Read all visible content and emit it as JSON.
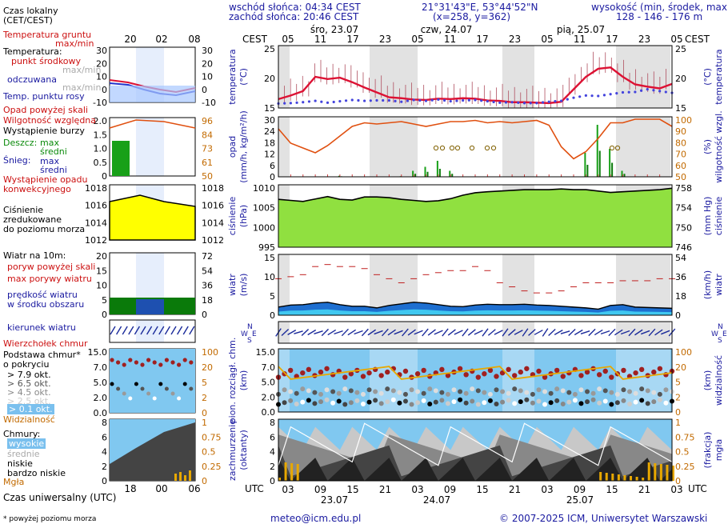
{
  "header": {
    "sunrise": "wschód słońca: 04:34 CEST",
    "sunset": "zachód słońca: 20:46 CEST",
    "coords": "21°31'43\"E, 53°44'52\"N",
    "grid": "(x=258,  y=362)",
    "altitude_label": "wysokość (min, środek, max)",
    "altitude_values": "128 - 146 - 176 m"
  },
  "time": {
    "local_label": "CEST",
    "utc_label": "UTC",
    "days_top": [
      "śro, 23.07",
      "czw, 24.07",
      "pią, 25.07"
    ],
    "top_hours": [
      "05",
      "11",
      "17",
      "23",
      "05",
      "11",
      "17",
      "23",
      "05",
      "11",
      "17",
      "23",
      "05"
    ],
    "bottom_hours": [
      "03",
      "09",
      "15",
      "21",
      "03",
      "09",
      "15",
      "21",
      "03",
      "09",
      "15",
      "21",
      "03"
    ],
    "dates_bottom": [
      "23.07",
      "24.07",
      "25.07"
    ],
    "legend_local": "Czas lokalny\n(CET/CEST)",
    "legend_local_hours": [
      "20",
      "02",
      "08"
    ],
    "legend_utc": "Czas uniwersalny (UTC)",
    "legend_utc_hours": [
      "18",
      "00",
      "06"
    ]
  },
  "legend": {
    "soil": "Temperatura gruntu",
    "soil_sub": "max/min",
    "temp": "Temperatura:",
    "temp_mid": "punkt środkowy",
    "temp_maxmin": "max/min",
    "feels": "odczuwana",
    "feels_maxmin": "max/min",
    "dew": "Temp. punktu rosy",
    "precip_over": "Opad powyżej skali",
    "humidity": "Wilgotność względna",
    "storm": "Wystąpienie burzy",
    "rain": "Deszcz:",
    "rain_max": "max",
    "rain_avg": "średni",
    "snow": "Śnieg:",
    "snow_max": "max",
    "snow_avg": "średni",
    "conv": "Wystąpienie opadu\nkonwekcyjnego",
    "pressure": "Ciśnienie\nzredukowane\ndo poziomu morza",
    "wind": "Wiatr na 10m:",
    "gust_over": "poryw powyżej skali",
    "gust_max": "max porywy wiatru",
    "wind_avg": "prędkość wiatru\nw środku obszaru",
    "wind_dir": "kierunek wiatru",
    "cloud_top": "Wierzchołek chmur",
    "cloud_base": "Podstawa chmur*\no pokryciu",
    "okt": [
      "> 7.9 okt.",
      "> 6.5 okt.",
      "> 4.5 okt.",
      "> 2.5 okt.",
      "> 0.1 okt."
    ],
    "visibility": "Widzialność",
    "clouds": "Chmury:",
    "cl_high": "wysokie",
    "cl_mid": "średnie",
    "cl_low": "niskie",
    "cl_vlow": "bardzo niskie",
    "fog": "Mgła",
    "footnote": "* powyżej poziomu morza"
  },
  "axes": {
    "temp_l": "temperatura\n(°C)",
    "temp_r": "(°C)\ntemperatura",
    "prec_l": "opad\n(mm/h, kg/m²/h)",
    "prec_r": "(%)\nwilgotność wzgl.",
    "pres_l": "ciśnienie\n(hPa)",
    "pres_r": "(mm Hg)\nciśnienie",
    "wind_l": "wiatr\n(m/s)",
    "wind_r": "(km/h)\nwiatr",
    "cb_l": "pion. rozciągł. chm.\n(km)",
    "cb_r": "(km)\nwidzialność",
    "cl_l": "zachmurzenie\n(oktanty)",
    "cl_r": "(frakcja)\nmgła",
    "compass": "N\nW E\nS"
  },
  "ticks": {
    "temp_l": [
      "25",
      "20",
      "15"
    ],
    "temp_r": [
      "25",
      "20",
      "15"
    ],
    "prec_l": [
      "30",
      "24",
      "18",
      "12",
      "6",
      "0"
    ],
    "prec_r": [
      "100",
      "90",
      "80",
      "70",
      "60",
      "50"
    ],
    "pres_l": [
      "1010",
      "1005",
      "1000",
      "995"
    ],
    "pres_r": [
      "758",
      "754",
      "750",
      "746"
    ],
    "wind_l": [
      "15",
      "10",
      "5",
      "0"
    ],
    "wind_r": [
      "54",
      "36",
      "18",
      "0"
    ],
    "cb_l": [
      "15.0",
      "7.0",
      "5.0",
      "2.0",
      "0.0"
    ],
    "cb_r": [
      "100",
      "20",
      "5",
      "2",
      "0"
    ],
    "cl_l": [
      "8",
      "6",
      "4",
      "2",
      "0"
    ],
    "cl_r": [
      "1",
      "0.75",
      "0.5",
      "0.25",
      "0"
    ],
    "lg_temp_l": [
      "30",
      "20",
      "10",
      "0",
      "-10"
    ],
    "lg_temp_r": [
      "30",
      "20",
      "10",
      "0",
      "-10"
    ],
    "lg_prec_l": [
      "2.0",
      "1.5",
      "1.0",
      "0.5",
      "0"
    ],
    "lg_prec_r": [
      "96",
      "84",
      "73",
      "61",
      "50"
    ],
    "lg_pres_l": [
      "1018",
      "1016",
      "1014",
      "1012"
    ],
    "lg_pres_r": [
      "1018",
      "1016",
      "1014",
      "1012"
    ],
    "lg_wind_l": [
      "20",
      "15",
      "10",
      "5",
      "0"
    ],
    "lg_wind_r": [
      "72",
      "54",
      "36",
      "18",
      "0"
    ],
    "lg_cb_l": [
      "15.0",
      "7.0",
      "5.0",
      "2.0",
      "0.0"
    ],
    "lg_cb_r": [
      "100",
      "20",
      "5",
      "2",
      "0"
    ],
    "lg_cl_l": [
      "8",
      "6",
      "4",
      "2",
      "0"
    ],
    "lg_cl_r": [
      "1",
      "0.75",
      "0.5",
      "0.25",
      "0"
    ]
  },
  "footer": {
    "email": "meteo@icm.edu.pl",
    "copyright": "© 2007-2025 ICM, Uniwersytet Warszawski"
  },
  "colors": {
    "temp": "#dd1133",
    "dew": "#4444dd",
    "humidity": "#e05010",
    "rain": "#18a018",
    "pressure": "#90e040",
    "wind": "#1e6fd0",
    "sky": "#80c8f0",
    "cloud": "#404040",
    "fog": "#e8a800",
    "shade": "#e2e2e2"
  },
  "chart_data": [
    {
      "type": "line",
      "name_hint": "temperature",
      "series": [
        {
          "name": "punkt środkowy",
          "values": [
            16,
            16.8,
            17.8,
            21,
            20.5,
            20.8,
            19.8,
            18.6,
            17.5,
            16.4,
            16.2,
            15.9,
            15.8,
            16.1,
            16,
            16.2,
            16.1,
            15.7,
            15.6,
            15.3,
            15.3,
            15.2,
            15.1,
            15.4,
            18.2,
            21,
            22.8,
            23.1,
            21,
            19.3,
            18.8,
            18.4,
            19.4
          ]
        },
        {
          "name": "Temp. punktu rosy",
          "values": [
            15,
            15.1,
            15.3,
            15.6,
            15.2,
            15.5,
            15.8,
            15.6,
            15.7,
            15.7,
            15.4,
            15.8,
            15.6,
            15.9,
            15.5,
            15.7,
            15.8,
            15.5,
            15.2,
            15.3,
            15.1,
            15.1,
            15.4,
            15.6,
            16.3,
            16.8,
            16.7,
            17.1,
            17.5,
            17.6,
            18.2,
            17.8,
            17.4
          ]
        }
      ],
      "ylim": [
        14,
        28
      ]
    },
    {
      "type": "line",
      "name_hint": "relative humidity",
      "series": [
        {
          "name": "Wilgotność względna",
          "values": [
            90,
            78,
            74,
            70,
            76,
            84,
            92,
            95,
            94,
            95,
            96,
            94,
            92,
            94,
            96,
            96,
            97,
            95,
            96,
            95,
            96,
            97,
            93,
            75,
            65,
            71,
            82,
            95,
            95,
            98,
            98,
            98,
            92
          ]
        }
      ],
      "ylim": [
        50,
        100
      ]
    },
    {
      "type": "bar",
      "name_hint": "precipitation",
      "values": [
        0,
        0,
        0,
        0,
        0,
        0.5,
        0,
        0,
        0,
        0,
        0.3,
        3,
        5,
        8,
        3,
        0,
        0,
        0,
        0,
        0,
        0,
        0,
        0,
        0,
        0,
        12,
        26,
        14,
        3,
        0,
        0,
        0,
        0
      ]
    },
    {
      "type": "area",
      "name_hint": "pressure",
      "values": [
        1008.8,
        1008.5,
        1008.2,
        1008.9,
        1009.6,
        1008.8,
        1008.6,
        1009.5,
        1009.5,
        1009.3,
        1008.8,
        1008.5,
        1008.2,
        1008.4,
        1009,
        1010,
        1010.7,
        1011.0,
        1011.2,
        1011.4,
        1011.6,
        1011.6,
        1011.6,
        1011.8,
        1011.6,
        1011.6,
        1011.2,
        1010.8,
        1011,
        1011.2,
        1011.4,
        1011.6,
        1012
      ]
    },
    {
      "type": "area",
      "name_hint": "wind speed",
      "values": [
        2,
        2.5,
        2.6,
        3,
        3.2,
        2.6,
        2.2,
        2.2,
        1.8,
        2.4,
        2.8,
        3.2,
        3,
        2.6,
        2.2,
        2.1,
        2.5,
        2.7,
        2.6,
        2.6,
        2.7,
        2.5,
        2.4,
        2.2,
        2.0,
        1.8,
        1.5,
        2.4,
        2.6,
        2,
        1.9,
        1.8,
        1.7
      ]
    },
    {
      "type": "scatter",
      "name_hint": "max gusts",
      "values": [
        9,
        9.5,
        10,
        12,
        12.5,
        12,
        12,
        11.5,
        10,
        9,
        8,
        9,
        10,
        10.5,
        11,
        11,
        12,
        11,
        8,
        7,
        6,
        5.5,
        5.5,
        6,
        7,
        8,
        8,
        8,
        8.5,
        8.5,
        8.5,
        9,
        9
      ]
    }
  ]
}
